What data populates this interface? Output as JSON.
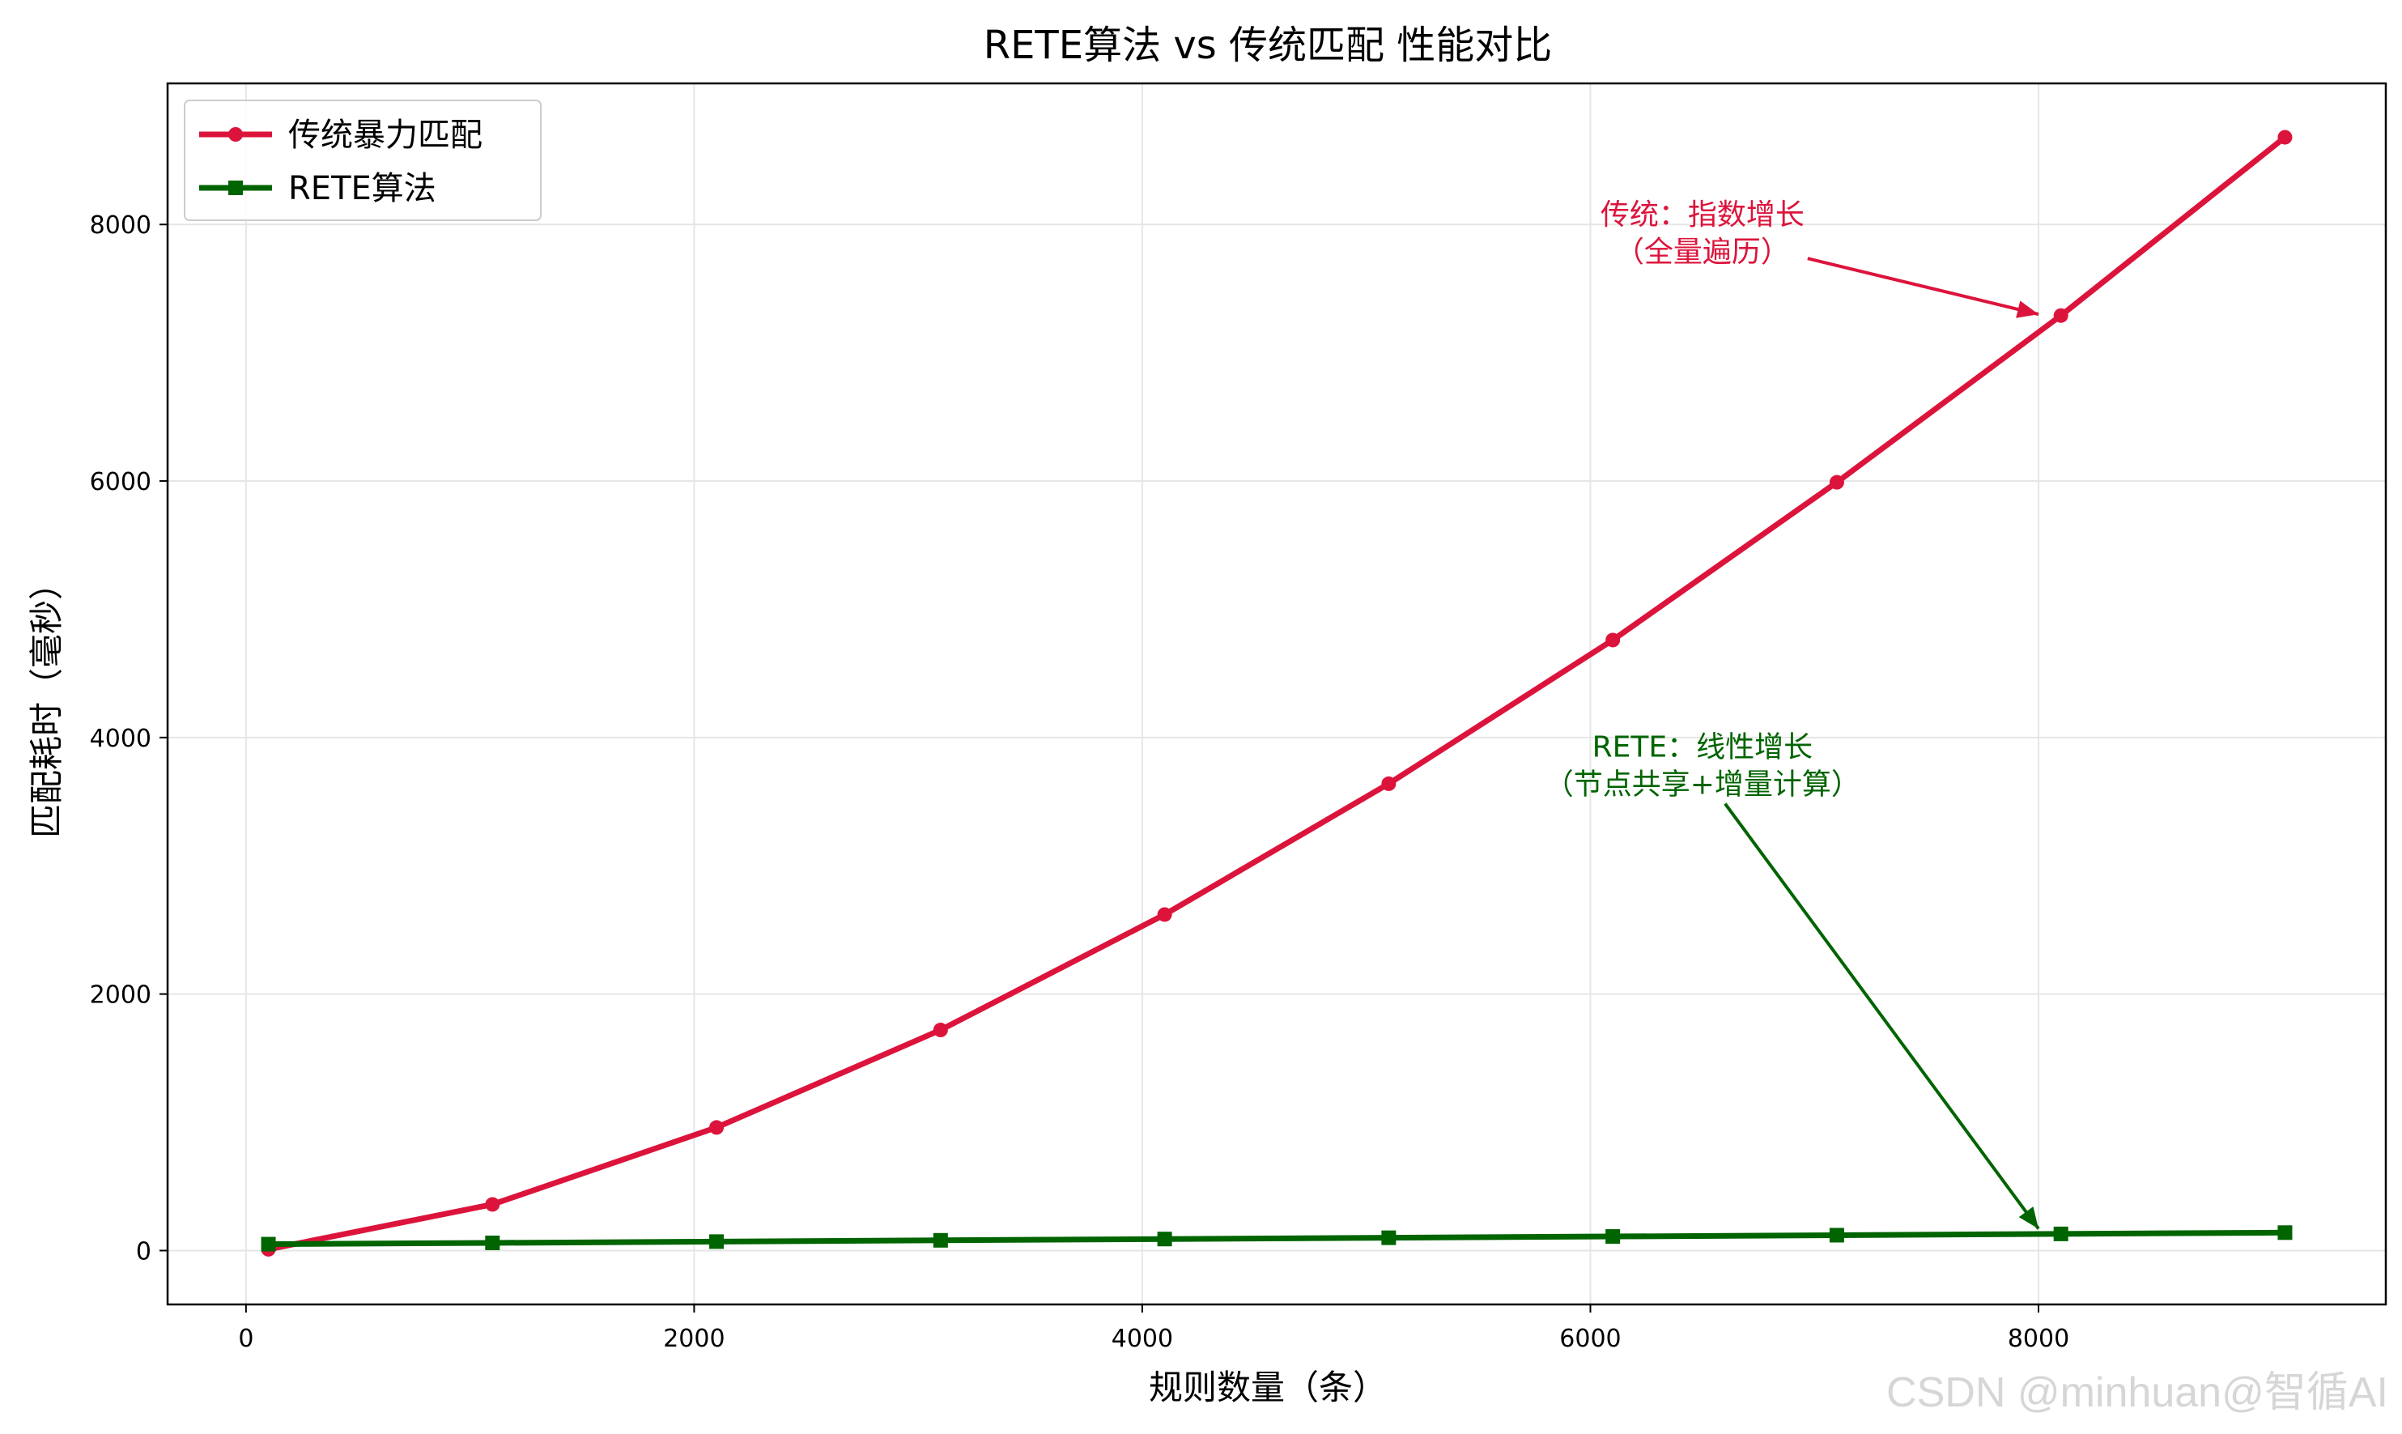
{
  "chart_data": {
    "type": "line",
    "title": "RETE算法 vs 传统匹配 性能对比",
    "xlabel": "规则数量（条）",
    "ylabel": "匹配耗时（毫秒）",
    "xlim": [
      -350,
      9550
    ],
    "ylim": [
      -420,
      9100
    ],
    "xticks": [
      0,
      2000,
      4000,
      6000,
      8000
    ],
    "xtick_labels": [
      "0",
      "2000",
      "4000",
      "6000",
      "8000"
    ],
    "yticks": [
      0,
      2000,
      4000,
      6000,
      8000
    ],
    "ytick_labels": [
      "0",
      "2000",
      "4000",
      "6000",
      "8000"
    ],
    "grid": true,
    "legend_position": "top-left",
    "x": [
      100,
      1100,
      2100,
      3100,
      4100,
      5100,
      6100,
      7100,
      8100,
      9100
    ],
    "series": [
      {
        "name": "传统暴力匹配",
        "color": "#dc143c",
        "marker": "circle",
        "values": [
          10,
          360,
          960,
          1720,
          2620,
          3640,
          4760,
          5990,
          7290,
          8680
        ]
      },
      {
        "name": "RETE算法",
        "color": "#006400",
        "marker": "square",
        "values": [
          50,
          60,
          70,
          80,
          90,
          100,
          110,
          120,
          130,
          140
        ]
      }
    ],
    "annotations": [
      {
        "lines": [
          "传统：指数增长",
          "（全量遍历）"
        ],
        "color": "#dc143c",
        "text_at": [
          6500,
          7950
        ],
        "arrow_to": [
          8000,
          7300
        ]
      },
      {
        "lines": [
          "RETE：线性增长",
          "（节点共享+增量计算）"
        ],
        "color": "#006400",
        "text_at": [
          6500,
          3800
        ],
        "arrow_to": [
          8000,
          170
        ]
      }
    ]
  },
  "watermark": "CSDN @minhuan@智循AI"
}
